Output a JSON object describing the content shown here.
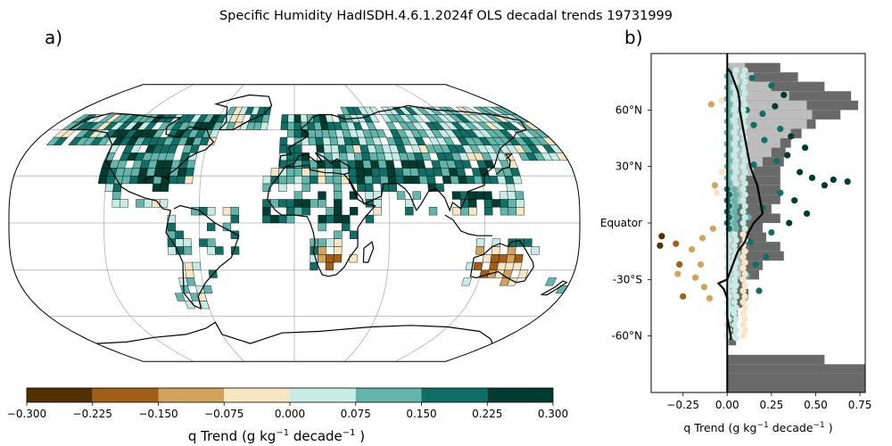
{
  "title": "Specific Humidity HadISDH.4.6.1.2024f OLS decadal trends 19731999",
  "panel_labels": {
    "a": "a)",
    "b": "b)"
  },
  "colors": {
    "palette": [
      "#543005",
      "#a35e15",
      "#d2a35a",
      "#f6e6c4",
      "#c7ebe5",
      "#61b5aa",
      "#0f6f66",
      "#003c30"
    ],
    "ocean": "#ffffff",
    "coast": "#000000",
    "grid": "#b0b0b0",
    "hist_dark": "#696969",
    "hist_light": "#bdbdbd",
    "median_line": "#000000"
  },
  "chart_data": [
    {
      "type": "heatmap",
      "projection": "robinson",
      "title": "",
      "colorbar": {
        "label": "q Trend (g kg",
        "label_sup": "−1",
        "label_mid": " decade",
        "label_sup2": "−1",
        "label_end": " )",
        "min": -0.3,
        "max": 0.3,
        "boundaries": [
          -0.3,
          -0.225,
          -0.15,
          -0.075,
          0.0,
          0.075,
          0.15,
          0.225,
          0.3
        ],
        "tick_labels": [
          "−0.300",
          "−0.225",
          "−0.150",
          "−0.075",
          "0.000",
          "0.075",
          "0.150",
          "0.225",
          "0.300"
        ]
      },
      "gridlines": true,
      "regions": [
        {
          "lon": [
            -140,
            -60
          ],
          "lat": [
            40,
            70
          ],
          "value": 0.15
        },
        {
          "lon": [
            -130,
            -70
          ],
          "lat": [
            25,
            40
          ],
          "value": 0.2
        },
        {
          "lon": [
            -110,
            -80
          ],
          "lat": [
            15,
            25
          ],
          "value": 0.25
        },
        {
          "lon": [
            -80,
            -35
          ],
          "lat": [
            -25,
            5
          ],
          "value": 0.12
        },
        {
          "lon": [
            -75,
            -60
          ],
          "lat": [
            -55,
            -25
          ],
          "value": 0.05
        },
        {
          "lon": [
            -20,
            40
          ],
          "lat": [
            35,
            70
          ],
          "value": 0.14
        },
        {
          "lon": [
            40,
            140
          ],
          "lat": [
            40,
            75
          ],
          "value": 0.1
        },
        {
          "lon": [
            40,
            90
          ],
          "lat": [
            20,
            40
          ],
          "value": 0.2
        },
        {
          "lon": [
            90,
            130
          ],
          "lat": [
            10,
            40
          ],
          "value": 0.22
        },
        {
          "lon": [
            -18,
            40
          ],
          "lat": [
            -10,
            20
          ],
          "value": 0.18
        },
        {
          "lon": [
            15,
            35
          ],
          "lat": [
            -35,
            -15
          ],
          "value": -0.12
        },
        {
          "lon": [
            115,
            155
          ],
          "lat": [
            -40,
            -15
          ],
          "value": -0.1
        }
      ]
    },
    {
      "type": "scatter",
      "xlabel": "q Trend (g kg",
      "xlabel_sup": "−1",
      "xlabel_mid": " decade",
      "xlabel_sup2": "−1",
      "xlabel_end": " )",
      "xlim": [
        -0.43,
        0.78
      ],
      "ylim": [
        -90,
        90
      ],
      "x_ticks": [
        -0.25,
        0.0,
        0.25,
        0.5,
        0.75
      ],
      "x_tick_labels": [
        "−0.25",
        "0.00",
        "0.25",
        "0.50",
        "0.75"
      ],
      "y_ticks": [
        60,
        30,
        0,
        -30,
        -60
      ],
      "y_tick_labels": [
        "60°N",
        "30°N",
        "Equator",
        "-30°S",
        "-60°N"
      ],
      "histogram": [
        {
          "lat": [
            80,
            85
          ],
          "dark": 0.3,
          "light": 0.1
        },
        {
          "lat": [
            75,
            80
          ],
          "dark": 0.4,
          "light": 0.15
        },
        {
          "lat": [
            70,
            75
          ],
          "dark": 0.55,
          "light": 0.25
        },
        {
          "lat": [
            65,
            70
          ],
          "dark": 0.7,
          "light": 0.35
        },
        {
          "lat": [
            60,
            65
          ],
          "dark": 0.74,
          "light": 0.45
        },
        {
          "lat": [
            55,
            60
          ],
          "dark": 0.64,
          "light": 0.48
        },
        {
          "lat": [
            50,
            55
          ],
          "dark": 0.5,
          "light": 0.45
        },
        {
          "lat": [
            45,
            50
          ],
          "dark": 0.42,
          "light": 0.36
        },
        {
          "lat": [
            40,
            45
          ],
          "dark": 0.36,
          "light": 0.3
        },
        {
          "lat": [
            35,
            40
          ],
          "dark": 0.33,
          "light": 0.25
        },
        {
          "lat": [
            30,
            35
          ],
          "dark": 0.32,
          "light": 0.2
        },
        {
          "lat": [
            25,
            30
          ],
          "dark": 0.3,
          "light": 0.15
        },
        {
          "lat": [
            20,
            25
          ],
          "dark": 0.3,
          "light": 0.1
        },
        {
          "lat": [
            15,
            20
          ],
          "dark": 0.3,
          "light": 0.1
        },
        {
          "lat": [
            10,
            15
          ],
          "dark": 0.3,
          "light": 0.1
        },
        {
          "lat": [
            5,
            10
          ],
          "dark": 0.25,
          "light": 0.05
        },
        {
          "lat": [
            0,
            5
          ],
          "dark": 0.3,
          "light": 0.04
        },
        {
          "lat": [
            -5,
            0
          ],
          "dark": 0.2,
          "light": 0.06
        },
        {
          "lat": [
            -10,
            -5
          ],
          "dark": 0.22,
          "light": 0.06
        },
        {
          "lat": [
            -15,
            -10
          ],
          "dark": 0.3,
          "light": 0.05
        },
        {
          "lat": [
            -20,
            -15
          ],
          "dark": 0.32,
          "light": 0.1
        },
        {
          "lat": [
            -25,
            -20
          ],
          "dark": 0.2,
          "light": 0.1
        },
        {
          "lat": [
            -30,
            -25
          ],
          "dark": 0.18,
          "light": 0.08
        },
        {
          "lat": [
            -35,
            -30
          ],
          "dark": 0.1,
          "light": 0.06
        },
        {
          "lat": [
            -40,
            -35
          ],
          "dark": 0.12,
          "light": 0.04
        },
        {
          "lat": [
            -45,
            -40
          ],
          "dark": 0.1,
          "light": 0.03
        },
        {
          "lat": [
            -50,
            -45
          ],
          "dark": 0.06,
          "light": 0.02
        },
        {
          "lat": [
            -55,
            -50
          ],
          "dark": 0.05,
          "light": 0.02
        },
        {
          "lat": [
            -60,
            -55
          ],
          "dark": 0.05,
          "light": 0.01
        },
        {
          "lat": [
            -65,
            -60
          ],
          "dark": 0.05,
          "light": 0.01
        },
        {
          "lat": [
            -70,
            -65
          ],
          "dark": 0.0,
          "light": 0.0
        },
        {
          "lat": [
            -75,
            -70
          ],
          "dark": 0.55,
          "light": 0.0
        },
        {
          "lat": [
            -80,
            -75
          ],
          "dark": 0.78,
          "light": 0.0
        },
        {
          "lat": [
            -90,
            -80
          ],
          "dark": 0.78,
          "light": 0.0
        }
      ],
      "median_line": {
        "lat": [
          82,
          80,
          75,
          70,
          65,
          60,
          55,
          50,
          45,
          40,
          35,
          30,
          25,
          20,
          15,
          10,
          5,
          0,
          -5,
          -10,
          -15,
          -20,
          -25,
          -30,
          -32,
          -35,
          -40,
          -45,
          -50,
          -55,
          -60,
          -62
        ],
        "x": [
          0.0,
          0.02,
          0.04,
          0.06,
          0.07,
          0.07,
          0.08,
          0.09,
          0.1,
          0.11,
          0.12,
          0.13,
          0.15,
          0.17,
          0.18,
          0.19,
          0.2,
          0.15,
          0.12,
          0.1,
          0.06,
          0.04,
          0.02,
          0.0,
          -0.05,
          -0.02,
          0.0,
          0.0,
          0.0,
          0.01,
          0.02,
          0.02
        ]
      },
      "points": [
        {
          "x": -0.09,
          "lat": 63,
          "v": -0.15
        },
        {
          "x": -0.03,
          "lat": 65,
          "v": -0.05
        },
        {
          "x": 0.08,
          "lat": 72,
          "v": 0.1
        },
        {
          "x": 0.14,
          "lat": 77,
          "v": 0.15
        },
        {
          "x": 0.25,
          "lat": 73,
          "v": 0.2
        },
        {
          "x": 0.32,
          "lat": 68,
          "v": 0.25
        },
        {
          "x": 0.27,
          "lat": 62,
          "v": 0.28
        },
        {
          "x": 0.11,
          "lat": 60,
          "v": 0.15
        },
        {
          "x": 0.2,
          "lat": 58,
          "v": 0.2
        },
        {
          "x": 0.03,
          "lat": 55,
          "v": 0.05
        },
        {
          "x": 0.15,
          "lat": 52,
          "v": 0.15
        },
        {
          "x": 0.3,
          "lat": 50,
          "v": 0.22
        },
        {
          "x": 0.36,
          "lat": 46,
          "v": 0.25
        },
        {
          "x": 0.21,
          "lat": 44,
          "v": 0.18
        },
        {
          "x": 0.08,
          "lat": 42,
          "v": 0.1
        },
        {
          "x": 0.44,
          "lat": 40,
          "v": 0.26
        },
        {
          "x": 0.34,
          "lat": 36,
          "v": 0.25
        },
        {
          "x": 0.28,
          "lat": 33,
          "v": 0.2
        },
        {
          "x": 0.15,
          "lat": 31,
          "v": 0.15
        },
        {
          "x": 0.05,
          "lat": 30,
          "v": 0.04
        },
        {
          "x": -0.03,
          "lat": 27,
          "v": -0.05
        },
        {
          "x": 0.41,
          "lat": 27,
          "v": 0.26
        },
        {
          "x": 0.48,
          "lat": 24,
          "v": 0.28
        },
        {
          "x": 0.6,
          "lat": 23,
          "v": 0.27
        },
        {
          "x": 0.68,
          "lat": 22,
          "v": 0.28
        },
        {
          "x": -0.07,
          "lat": 20,
          "v": -0.12
        },
        {
          "x": 0.55,
          "lat": 20,
          "v": 0.26
        },
        {
          "x": -0.06,
          "lat": 16,
          "v": -0.05
        },
        {
          "x": 0.3,
          "lat": 16,
          "v": 0.22
        },
        {
          "x": 0.38,
          "lat": 12,
          "v": 0.25
        },
        {
          "x": 0.2,
          "lat": 8,
          "v": 0.2
        },
        {
          "x": 0.45,
          "lat": 5,
          "v": 0.26
        },
        {
          "x": 0.12,
          "lat": 3,
          "v": 0.12
        },
        {
          "x": 0.35,
          "lat": 0,
          "v": 0.24
        },
        {
          "x": -0.37,
          "lat": -7,
          "v": -0.27
        },
        {
          "x": -0.08,
          "lat": -3,
          "v": -0.15
        },
        {
          "x": 0.25,
          "lat": -5,
          "v": 0.2
        },
        {
          "x": -0.29,
          "lat": -11,
          "v": -0.2
        },
        {
          "x": -0.14,
          "lat": -8,
          "v": -0.12
        },
        {
          "x": 0.13,
          "lat": -10,
          "v": 0.15
        },
        {
          "x": -0.38,
          "lat": -12,
          "v": -0.28
        },
        {
          "x": -0.2,
          "lat": -14,
          "v": -0.1
        },
        {
          "x": 0.09,
          "lat": -16,
          "v": 0.12
        },
        {
          "x": 0.22,
          "lat": -18,
          "v": 0.22
        },
        {
          "x": -0.27,
          "lat": -22,
          "v": -0.2
        },
        {
          "x": -0.15,
          "lat": -22,
          "v": -0.15
        },
        {
          "x": 0.03,
          "lat": -21,
          "v": 0.05
        },
        {
          "x": 0.16,
          "lat": -22,
          "v": 0.15
        },
        {
          "x": -0.28,
          "lat": -27,
          "v": -0.15
        },
        {
          "x": -0.18,
          "lat": -29,
          "v": -0.1
        },
        {
          "x": 0.11,
          "lat": -28,
          "v": 0.12
        },
        {
          "x": -0.13,
          "lat": -34,
          "v": -0.15
        },
        {
          "x": 0.04,
          "lat": -33,
          "v": 0.05
        },
        {
          "x": 0.18,
          "lat": -36,
          "v": 0.15
        },
        {
          "x": -0.25,
          "lat": -39,
          "v": -0.22
        },
        {
          "x": -0.1,
          "lat": -40,
          "v": -0.12
        },
        {
          "x": 0.1,
          "lat": -40,
          "v": 0.1
        },
        {
          "x": 0.03,
          "lat": -46,
          "v": 0.05
        },
        {
          "x": 0.05,
          "lat": -61,
          "v": 0.05
        }
      ]
    }
  ]
}
